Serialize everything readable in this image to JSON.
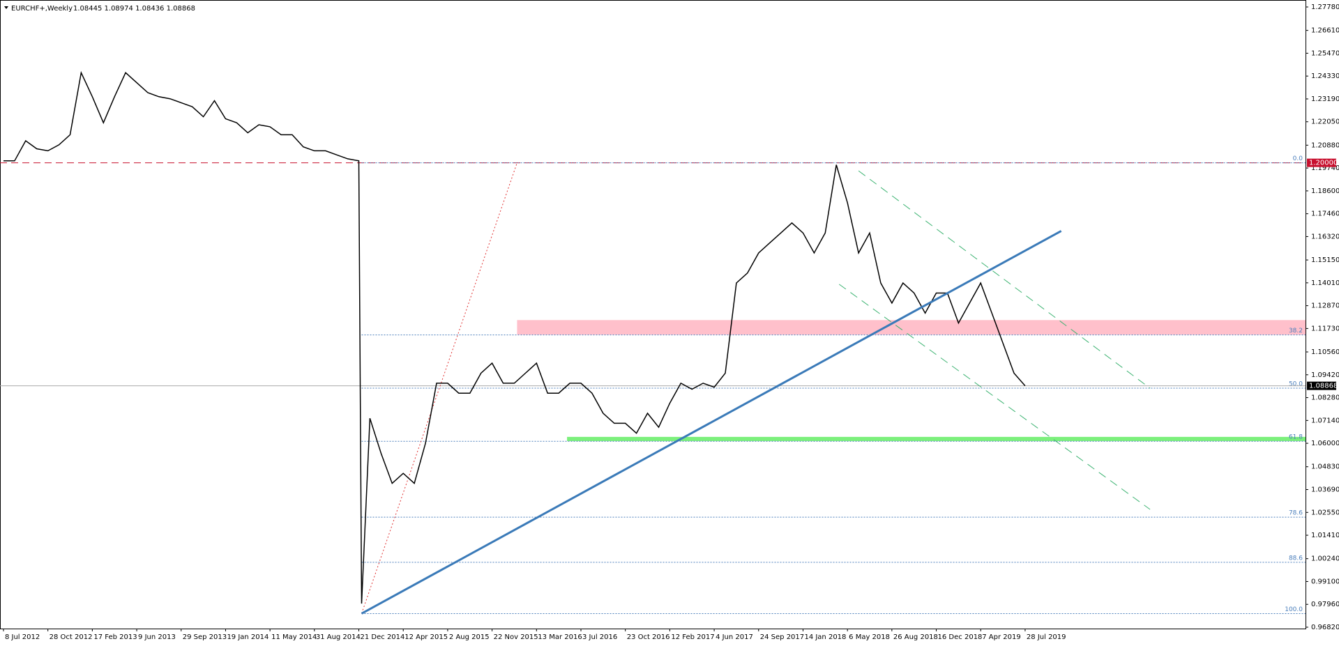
{
  "chart_data": {
    "type": "line",
    "title": "EURCHF+,Weekly",
    "ohlc_label": "1.08445 1.08974 1.08436 1.08868",
    "color": "#000000",
    "x": [
      0,
      4,
      8,
      12,
      16,
      20,
      24,
      28,
      32,
      36,
      40,
      44,
      48,
      52,
      56,
      60,
      64,
      68,
      72,
      76,
      80,
      84,
      88,
      92,
      96,
      100,
      104,
      108,
      112,
      116,
      120,
      124,
      128,
      129,
      132,
      136,
      140,
      144,
      148,
      152,
      156,
      160,
      164,
      168,
      172,
      176,
      180,
      184,
      188,
      192,
      196,
      200,
      204,
      208,
      212,
      216,
      220,
      224,
      228,
      232,
      236,
      240,
      244,
      248,
      252,
      256,
      260,
      264,
      268,
      272,
      276,
      280,
      284,
      288,
      292,
      296,
      300,
      304,
      308,
      312,
      316,
      320,
      324,
      328,
      332,
      336,
      340,
      344,
      348,
      352,
      356,
      360,
      364,
      368
    ],
    "values": [
      1.201,
      1.201,
      1.211,
      1.207,
      1.206,
      1.209,
      1.214,
      1.245,
      1.233,
      1.22,
      1.233,
      1.245,
      1.24,
      1.235,
      1.233,
      1.232,
      1.23,
      1.228,
      1.223,
      1.231,
      1.222,
      1.22,
      1.215,
      1.219,
      1.218,
      1.214,
      1.214,
      1.208,
      1.206,
      1.206,
      1.204,
      1.202,
      1.201,
      0.98,
      1.0725,
      1.055,
      1.04,
      1.045,
      1.04,
      1.06,
      1.09,
      1.09,
      1.085,
      1.085,
      1.095,
      1.1,
      1.09,
      1.09,
      1.095,
      1.1,
      1.085,
      1.085,
      1.09,
      1.09,
      1.085,
      1.075,
      1.07,
      1.07,
      1.065,
      1.075,
      1.068,
      1.08,
      1.09,
      1.087,
      1.09,
      1.088,
      1.095,
      1.14,
      1.145,
      1.155,
      1.16,
      1.165,
      1.17,
      1.165,
      1.155,
      1.165,
      1.199,
      1.18,
      1.155,
      1.165,
      1.14,
      1.13,
      1.14,
      1.135,
      1.125,
      1.135,
      1.135,
      1.12,
      1.13,
      1.14,
      1.125,
      1.11,
      1.095,
      1.0887
    ],
    "xlim": [
      -1.25,
      469
    ],
    "ylim": [
      0.9682,
      1.2778
    ],
    "xticks": [
      {
        "value": 0,
        "label": "8 Jul 2012"
      },
      {
        "value": 16,
        "label": "28 Oct 2012"
      },
      {
        "value": 32,
        "label": "17 Feb 2013"
      },
      {
        "value": 48,
        "label": "9 Jun 2013"
      },
      {
        "value": 64,
        "label": "29 Sep 2013"
      },
      {
        "value": 80,
        "label": "19 Jan 2014"
      },
      {
        "value": 96,
        "label": "11 May 2014"
      },
      {
        "value": 112,
        "label": "31 Aug 2014"
      },
      {
        "value": 128,
        "label": "21 Dec 2014"
      },
      {
        "value": 144,
        "label": "12 Apr 2015"
      },
      {
        "value": 160,
        "label": "2 Aug 2015"
      },
      {
        "value": 176,
        "label": "22 Nov 2015"
      },
      {
        "value": 192,
        "label": "13 Mar 2016"
      },
      {
        "value": 208,
        "label": "3 Jul 2016"
      },
      {
        "value": 224,
        "label": "23 Oct 2016"
      },
      {
        "value": 240,
        "label": "12 Feb 2017"
      },
      {
        "value": 256,
        "label": "4 Jun 2017"
      },
      {
        "value": 272,
        "label": "24 Sep 2017"
      },
      {
        "value": 288,
        "label": "14 Jan 2018"
      },
      {
        "value": 304,
        "label": "6 May 2018"
      },
      {
        "value": 320,
        "label": "26 Aug 2018"
      },
      {
        "value": 336,
        "label": "16 Dec 2018"
      },
      {
        "value": 352,
        "label": "7 Apr 2019"
      },
      {
        "value": 368,
        "label": "28 Jul 2019"
      }
    ],
    "yticks": [
      {
        "value": 1.2778,
        "label": "1.27780"
      },
      {
        "value": 1.2661,
        "label": "1.26610"
      },
      {
        "value": 1.2547,
        "label": "1.25470"
      },
      {
        "value": 1.2433,
        "label": "1.24330"
      },
      {
        "value": 1.2319,
        "label": "1.23190"
      },
      {
        "value": 1.2205,
        "label": "1.22050"
      },
      {
        "value": 1.2088,
        "label": "1.20880"
      },
      {
        "value": 1.1974,
        "label": "1.19740"
      },
      {
        "value": 1.186,
        "label": "1.18600"
      },
      {
        "value": 1.1746,
        "label": "1.17460"
      },
      {
        "value": 1.1632,
        "label": "1.16320"
      },
      {
        "value": 1.1515,
        "label": "1.15150"
      },
      {
        "value": 1.1401,
        "label": "1.14010"
      },
      {
        "value": 1.1287,
        "label": "1.12870"
      },
      {
        "value": 1.1173,
        "label": "1.11730"
      },
      {
        "value": 1.1056,
        "label": "1.10560"
      },
      {
        "value": 1.0942,
        "label": "1.09420"
      },
      {
        "value": 1.0828,
        "label": "1.08280"
      },
      {
        "value": 1.0714,
        "label": "1.07140"
      },
      {
        "value": 1.06,
        "label": "1.06000"
      },
      {
        "value": 1.0483,
        "label": "1.04830"
      },
      {
        "value": 1.0369,
        "label": "1.03690"
      },
      {
        "value": 1.0255,
        "label": "1.02550"
      },
      {
        "value": 1.0141,
        "label": "1.01410"
      },
      {
        "value": 1.0024,
        "label": "1.00240"
      },
      {
        "value": 0.991,
        "label": "0.99100"
      },
      {
        "value": 0.9796,
        "label": "0.97960"
      },
      {
        "value": 0.9682,
        "label": "0.96820"
      }
    ],
    "last_price": {
      "value": 1.08868,
      "label": "1.08868"
    },
    "level_marker": {
      "value": 1.2,
      "label": "1.20000",
      "color": "#c8102e"
    },
    "fib": {
      "x_start": 129,
      "color": "#4a7ebb",
      "levels": [
        {
          "value": 1.2,
          "label": "0.0"
        },
        {
          "value": 1.1141,
          "label": "38.2"
        },
        {
          "value": 1.0875,
          "label": "50.0"
        },
        {
          "value": 1.061,
          "label": "61.8"
        },
        {
          "value": 1.0231,
          "label": "78.6"
        },
        {
          "value": 1.0006,
          "label": "88.6"
        },
        {
          "value": 0.975,
          "label": "100.0"
        }
      ]
    },
    "zones": [
      {
        "from": 1.1142,
        "to": 1.1215,
        "x": [
          185,
          469
        ],
        "color": "#ffc0cb"
      },
      {
        "from": 1.0611,
        "to": 1.0632,
        "x": [
          203,
          469
        ],
        "color": "#7cf07c"
      }
    ],
    "trendline": {
      "x": [
        129,
        381
      ],
      "y": [
        0.975,
        1.166
      ],
      "color": "#3a7ab8"
    },
    "channel": {
      "color": "#3cb371",
      "lines": [
        {
          "x": [
            308,
            413
          ],
          "y": [
            1.196,
            1.0875
          ]
        },
        {
          "x": [
            301,
            413
          ],
          "y": [
            1.1394,
            1.027
          ]
        }
      ]
    },
    "retracement_line": {
      "x": [
        129,
        185
      ],
      "y": [
        0.975,
        1.2
      ],
      "color": "#e03030"
    }
  }
}
